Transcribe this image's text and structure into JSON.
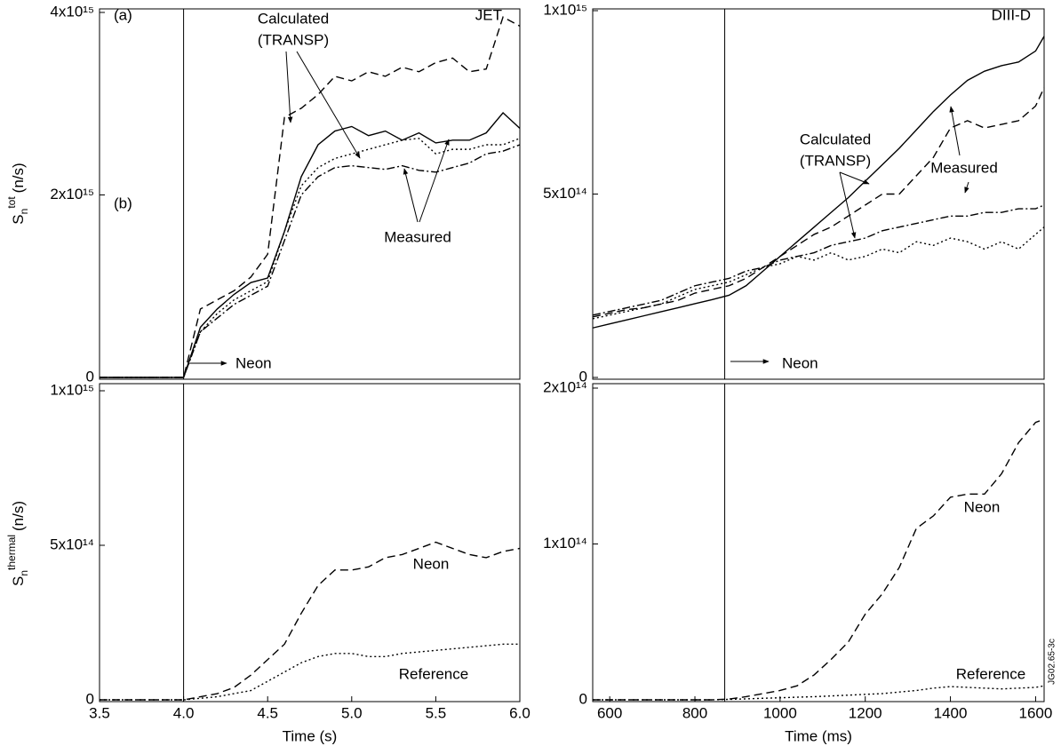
{
  "chart_data": [
    {
      "type": "line",
      "xlim": [
        3.5,
        6.0
      ],
      "ylim": [
        0,
        4000000000000000.0
      ],
      "yticks": [
        0,
        {
          "value": 2000000000000000.0,
          "label": "2x10¹⁵"
        },
        {
          "value": 4000000000000000.0,
          "label": "4x10¹⁵"
        }
      ],
      "ylabel": {
        "base": "S",
        "sub": "n",
        "sup": "tot",
        "unit": "(n/s)"
      },
      "vline": 4.0,
      "grid": false,
      "annotations": [
        "(a)",
        "(b)",
        "JET",
        "Calculated",
        "(TRANSP)",
        "Measured",
        "Neon"
      ],
      "x": [
        3.5,
        3.6,
        3.7,
        3.8,
        3.9,
        4.0,
        4.1,
        4.2,
        4.3,
        4.4,
        4.5,
        4.6,
        4.7,
        4.8,
        4.9,
        5.0,
        5.1,
        5.2,
        5.3,
        5.4,
        5.5,
        5.6,
        5.7,
        5.8,
        5.9,
        6.0
      ],
      "series": [
        {
          "style": "solid",
          "color": "#000000",
          "values": [
            0,
            0,
            0,
            0,
            0,
            0,
            550000000000000.0,
            750000000000000.0,
            910000000000000.0,
            1040000000000000.0,
            1090000000000000.0,
            1600000000000000.0,
            2200000000000000.0,
            2550000000000000.0,
            2700000000000000.0,
            2750000000000000.0,
            2650000000000000.0,
            2700000000000000.0,
            2600000000000000.0,
            2680000000000000.0,
            2570000000000000.0,
            2600000000000000.0,
            2600000000000000.0,
            2680000000000000.0,
            2900000000000000.0,
            2730000000000000.0
          ]
        },
        {
          "style": "dashed",
          "color": "#000000",
          "values": [
            0,
            0,
            0,
            0,
            0,
            0,
            750000000000000.0,
            850000000000000.0,
            950000000000000.0,
            1100000000000000.0,
            1350000000000000.0,
            2850000000000000.0,
            2950000000000000.0,
            3100000000000000.0,
            3300000000000000.0,
            3250000000000000.0,
            3350000000000000.0,
            3300000000000000.0,
            3400000000000000.0,
            3350000000000000.0,
            3450000000000000.0,
            3500000000000000.0,
            3350000000000000.0,
            3380000000000000.0,
            3950000000000000.0,
            3850000000000000.0
          ]
        },
        {
          "style": "dotted",
          "color": "#000000",
          "values": [
            0,
            0,
            0,
            0,
            0,
            0,
            500000000000000.0,
            700000000000000.0,
            850000000000000.0,
            950000000000000.0,
            1050000000000000.0,
            1600000000000000.0,
            2100000000000000.0,
            2300000000000000.0,
            2400000000000000.0,
            2450000000000000.0,
            2500000000000000.0,
            2550000000000000.0,
            2600000000000000.0,
            2620000000000000.0,
            2450000000000000.0,
            2500000000000000.0,
            2500000000000000.0,
            2550000000000000.0,
            2550000000000000.0,
            2620000000000000.0
          ]
        },
        {
          "style": "dashdot",
          "color": "#000000",
          "values": [
            0,
            0,
            0,
            0,
            0,
            0,
            500000000000000.0,
            650000000000000.0,
            800000000000000.0,
            900000000000000.0,
            1000000000000000.0,
            1500000000000000.0,
            2000000000000000.0,
            2200000000000000.0,
            2300000000000000.0,
            2320000000000000.0,
            2300000000000000.0,
            2280000000000000.0,
            2320000000000000.0,
            2270000000000000.0,
            2250000000000000.0,
            2300000000000000.0,
            2350000000000000.0,
            2450000000000000.0,
            2480000000000000.0,
            2550000000000000.0
          ]
        }
      ]
    },
    {
      "type": "line",
      "xlim": [
        3.5,
        6.0
      ],
      "ylim": [
        0,
        1000000000000000.0
      ],
      "xticks": [
        3.5,
        {
          "value": 4,
          "label": "4.0"
        },
        4.5,
        {
          "value": 5,
          "label": "5.0"
        },
        5.5,
        {
          "value": 6,
          "label": "6.0"
        }
      ],
      "xlabel": "Time (s)",
      "yticks": [
        0,
        {
          "value": 500000000000000.0,
          "label": "5x10¹⁴"
        },
        {
          "value": 1000000000000000.0,
          "label": "1x10¹⁵"
        }
      ],
      "ylabel": {
        "base": "S",
        "sub": "n",
        "sup": "thermal",
        "unit": "(n/s)"
      },
      "vline": 4.0,
      "grid": false,
      "annotations": [
        "Neon",
        "Reference"
      ],
      "x": [
        3.5,
        3.6,
        3.7,
        3.8,
        3.9,
        4.0,
        4.1,
        4.2,
        4.3,
        4.4,
        4.5,
        4.6,
        4.7,
        4.8,
        4.9,
        5.0,
        5.1,
        5.2,
        5.3,
        5.4,
        5.5,
        5.6,
        5.7,
        5.8,
        5.9,
        6.0
      ],
      "series": [
        {
          "style": "dashed",
          "color": "#000000",
          "values": [
            0,
            0,
            0,
            0,
            0,
            0,
            10000000000000.0,
            20000000000000.0,
            40000000000000.0,
            80000000000000.0,
            130000000000000.0,
            180000000000000.0,
            280000000000000.0,
            370000000000000.0,
            420000000000000.0,
            420000000000000.0,
            430000000000000.0,
            460000000000000.0,
            470000000000000.0,
            490000000000000.0,
            510000000000000.0,
            490000000000000.0,
            470000000000000.0,
            460000000000000.0,
            480000000000000.0,
            490000000000000.0
          ]
        },
        {
          "style": "dotted",
          "color": "#000000",
          "values": [
            0,
            0,
            0,
            0,
            0,
            0,
            5000000000000.0,
            10000000000000.0,
            20000000000000.0,
            30000000000000.0,
            60000000000000.0,
            90000000000000.0,
            120000000000000.0,
            140000000000000.0,
            150000000000000.0,
            150000000000000.0,
            140000000000000.0,
            140000000000000.0,
            150000000000000.0,
            155000000000000.0,
            160000000000000.0,
            165000000000000.0,
            170000000000000.0,
            175000000000000.0,
            180000000000000.0,
            180000000000000.0
          ]
        }
      ]
    },
    {
      "type": "line",
      "xlim": [
        560,
        1620
      ],
      "ylim": [
        0,
        1000000000000000.0
      ],
      "yticks": [
        0,
        {
          "value": 500000000000000.0,
          "label": "5x10¹⁴"
        },
        {
          "value": 1000000000000000.0,
          "label": "1x10¹⁵"
        }
      ],
      "vline": 870,
      "grid": false,
      "annotations": [
        "DIII-D",
        "Calculated",
        "(TRANSP)",
        "Measured",
        "Neon"
      ],
      "x": [
        560,
        600,
        640,
        680,
        720,
        760,
        800,
        840,
        880,
        920,
        960,
        1000,
        1040,
        1080,
        1120,
        1160,
        1200,
        1240,
        1280,
        1320,
        1360,
        1400,
        1440,
        1480,
        1520,
        1560,
        1600,
        1620
      ],
      "series": [
        {
          "style": "solid",
          "color": "#000000",
          "values": [
            135000000000000.0,
            146000000000000.0,
            157000000000000.0,
            168000000000000.0,
            179000000000000.0,
            190000000000000.0,
            201000000000000.0,
            212000000000000.0,
            224000000000000.0,
            250000000000000.0,
            290000000000000.0,
            330000000000000.0,
            370000000000000.0,
            410000000000000.0,
            450000000000000.0,
            490000000000000.0,
            535000000000000.0,
            580000000000000.0,
            625000000000000.0,
            675000000000000.0,
            725000000000000.0,
            770000000000000.0,
            810000000000000.0,
            835000000000000.0,
            850000000000000.0,
            860000000000000.0,
            890000000000000.0,
            930000000000000.0
          ]
        },
        {
          "style": "dashed",
          "color": "#000000",
          "values": [
            165000000000000.0,
            175000000000000.0,
            185000000000000.0,
            190000000000000.0,
            200000000000000.0,
            210000000000000.0,
            230000000000000.0,
            240000000000000.0,
            250000000000000.0,
            270000000000000.0,
            300000000000000.0,
            330000000000000.0,
            360000000000000.0,
            390000000000000.0,
            410000000000000.0,
            440000000000000.0,
            470000000000000.0,
            500000000000000.0,
            500000000000000.0,
            550000000000000.0,
            600000000000000.0,
            680000000000000.0,
            700000000000000.0,
            680000000000000.0,
            690000000000000.0,
            700000000000000.0,
            740000000000000.0,
            790000000000000.0
          ]
        },
        {
          "style": "dotted",
          "color": "#000000",
          "values": [
            160000000000000.0,
            170000000000000.0,
            180000000000000.0,
            190000000000000.0,
            200000000000000.0,
            220000000000000.0,
            240000000000000.0,
            250000000000000.0,
            260000000000000.0,
            280000000000000.0,
            300000000000000.0,
            310000000000000.0,
            330000000000000.0,
            320000000000000.0,
            340000000000000.0,
            320000000000000.0,
            330000000000000.0,
            350000000000000.0,
            340000000000000.0,
            370000000000000.0,
            360000000000000.0,
            380000000000000.0,
            370000000000000.0,
            350000000000000.0,
            370000000000000.0,
            350000000000000.0,
            390000000000000.0,
            410000000000000.0
          ]
        },
        {
          "style": "dashdot",
          "color": "#000000",
          "values": [
            170000000000000.0,
            180000000000000.0,
            190000000000000.0,
            200000000000000.0,
            210000000000000.0,
            230000000000000.0,
            250000000000000.0,
            260000000000000.0,
            270000000000000.0,
            290000000000000.0,
            300000000000000.0,
            320000000000000.0,
            330000000000000.0,
            340000000000000.0,
            360000000000000.0,
            370000000000000.0,
            380000000000000.0,
            400000000000000.0,
            410000000000000.0,
            420000000000000.0,
            430000000000000.0,
            440000000000000.0,
            440000000000000.0,
            450000000000000.0,
            450000000000000.0,
            460000000000000.0,
            460000000000000.0,
            470000000000000.0
          ]
        }
      ]
    },
    {
      "type": "line",
      "xlim": [
        560,
        1620
      ],
      "ylim": [
        0,
        200000000000000.0
      ],
      "xticks": [
        600,
        800,
        1000,
        1200,
        1400,
        1600
      ],
      "xlabel": "Time (ms)",
      "yticks": [
        0,
        {
          "value": 100000000000000.0,
          "label": "1x10¹⁴"
        },
        {
          "value": 200000000000000.0,
          "label": "2x10¹⁴"
        }
      ],
      "vline": 870,
      "grid": false,
      "annotations": [
        "Neon",
        "Reference"
      ],
      "x": [
        560,
        600,
        640,
        680,
        720,
        760,
        800,
        840,
        880,
        920,
        960,
        1000,
        1040,
        1080,
        1120,
        1160,
        1200,
        1240,
        1280,
        1320,
        1360,
        1400,
        1440,
        1480,
        1520,
        1560,
        1600,
        1620
      ],
      "series": [
        {
          "style": "dashed",
          "color": "#000000",
          "values": [
            0,
            0,
            0,
            0,
            0,
            0,
            0,
            0,
            500000000000.0,
            2000000000000.0,
            4000000000000.0,
            6000000000000.0,
            9000000000000.0,
            16000000000000.0,
            26000000000000.0,
            37000000000000.0,
            55000000000000.0,
            68000000000000.0,
            85000000000000.0,
            110000000000000.0,
            118000000000000.0,
            130000000000000.0,
            132000000000000.0,
            132000000000000.0,
            145000000000000.0,
            165000000000000.0,
            178000000000000.0,
            180000000000000.0
          ]
        },
        {
          "style": "dotted",
          "color": "#000000",
          "values": [
            0,
            0,
            0,
            0,
            0,
            0,
            0,
            0,
            300000000000.0,
            600000000000.0,
            1000000000000.0,
            1300000000000.0,
            1700000000000.0,
            2000000000000.0,
            2500000000000.0,
            3000000000000.0,
            3500000000000.0,
            4000000000000.0,
            5000000000000.0,
            6000000000000.0,
            7500000000000.0,
            8500000000000.0,
            8000000000000.0,
            7500000000000.0,
            7000000000000.0,
            7500000000000.0,
            8000000000000.0,
            9000000000000.0
          ]
        }
      ]
    }
  ],
  "figure_id": "JG02.65-3c"
}
